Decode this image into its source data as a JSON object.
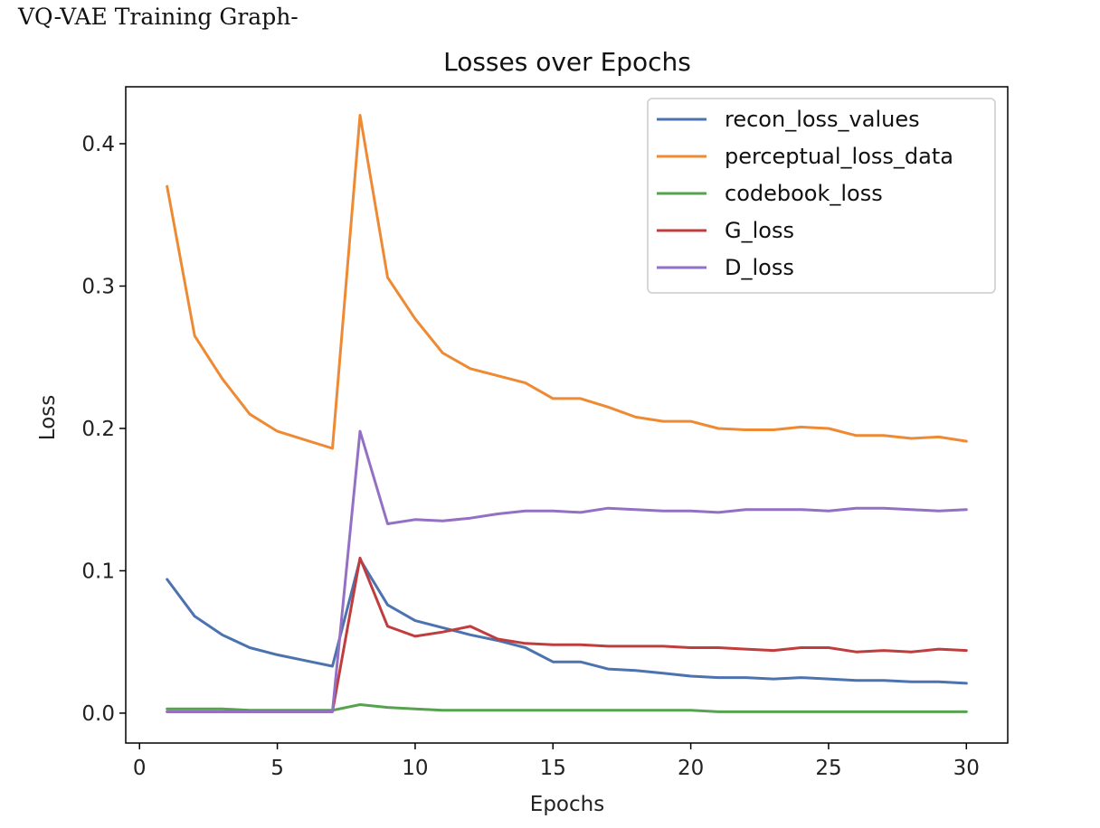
{
  "caption": "VQ-VAE Training Graph-",
  "chart_data": {
    "type": "line",
    "title": "Losses over Epochs",
    "xlabel": "Epochs",
    "ylabel": "Loss",
    "xlim": [
      -0.5,
      31.5
    ],
    "ylim": [
      -0.021,
      0.44
    ],
    "xticks": [
      0,
      5,
      10,
      15,
      20,
      25,
      30
    ],
    "yticks": [
      0.0,
      0.1,
      0.2,
      0.3,
      0.4
    ],
    "ytick_labels": [
      "0.0",
      "0.1",
      "0.2",
      "0.3",
      "0.4"
    ],
    "legend_position": "upper right",
    "grid": false,
    "x": [
      1,
      2,
      3,
      4,
      5,
      6,
      7,
      8,
      9,
      10,
      11,
      12,
      13,
      14,
      15,
      16,
      17,
      18,
      19,
      20,
      21,
      22,
      23,
      24,
      25,
      26,
      27,
      28,
      29,
      30
    ],
    "series": [
      {
        "name": "recon_loss_values",
        "color": "#4c72b0",
        "values": [
          0.094,
          0.068,
          0.055,
          0.046,
          0.041,
          0.037,
          0.033,
          0.108,
          0.076,
          0.065,
          0.06,
          0.055,
          0.051,
          0.046,
          0.036,
          0.036,
          0.031,
          0.03,
          0.028,
          0.026,
          0.025,
          0.025,
          0.024,
          0.025,
          0.024,
          0.023,
          0.023,
          0.022,
          0.022,
          0.021
        ]
      },
      {
        "name": "perceptual_loss_data",
        "color": "#ee8a34",
        "values": [
          0.37,
          0.265,
          0.235,
          0.21,
          0.198,
          0.192,
          0.186,
          0.42,
          0.306,
          0.277,
          0.253,
          0.242,
          0.237,
          0.232,
          0.221,
          0.221,
          0.215,
          0.208,
          0.205,
          0.205,
          0.2,
          0.199,
          0.199,
          0.201,
          0.2,
          0.195,
          0.195,
          0.193,
          0.194,
          0.191
        ]
      },
      {
        "name": "codebook_loss",
        "color": "#55a34e",
        "values": [
          0.003,
          0.003,
          0.003,
          0.002,
          0.002,
          0.002,
          0.002,
          0.006,
          0.004,
          0.003,
          0.002,
          0.002,
          0.002,
          0.002,
          0.002,
          0.002,
          0.002,
          0.002,
          0.002,
          0.002,
          0.001,
          0.001,
          0.001,
          0.001,
          0.001,
          0.001,
          0.001,
          0.001,
          0.001,
          0.001
        ]
      },
      {
        "name": "G_loss",
        "color": "#c03d3e",
        "values": [
          0.001,
          0.001,
          0.001,
          0.001,
          0.001,
          0.001,
          0.001,
          0.109,
          0.061,
          0.054,
          0.057,
          0.061,
          0.052,
          0.049,
          0.048,
          0.048,
          0.047,
          0.047,
          0.047,
          0.046,
          0.046,
          0.045,
          0.044,
          0.046,
          0.046,
          0.043,
          0.044,
          0.043,
          0.045,
          0.044
        ]
      },
      {
        "name": "D_loss",
        "color": "#9370c4",
        "values": [
          0.001,
          0.001,
          0.001,
          0.001,
          0.001,
          0.001,
          0.001,
          0.198,
          0.133,
          0.136,
          0.135,
          0.137,
          0.14,
          0.142,
          0.142,
          0.141,
          0.144,
          0.143,
          0.142,
          0.142,
          0.141,
          0.143,
          0.143,
          0.143,
          0.142,
          0.144,
          0.144,
          0.143,
          0.142,
          0.143
        ]
      }
    ]
  }
}
